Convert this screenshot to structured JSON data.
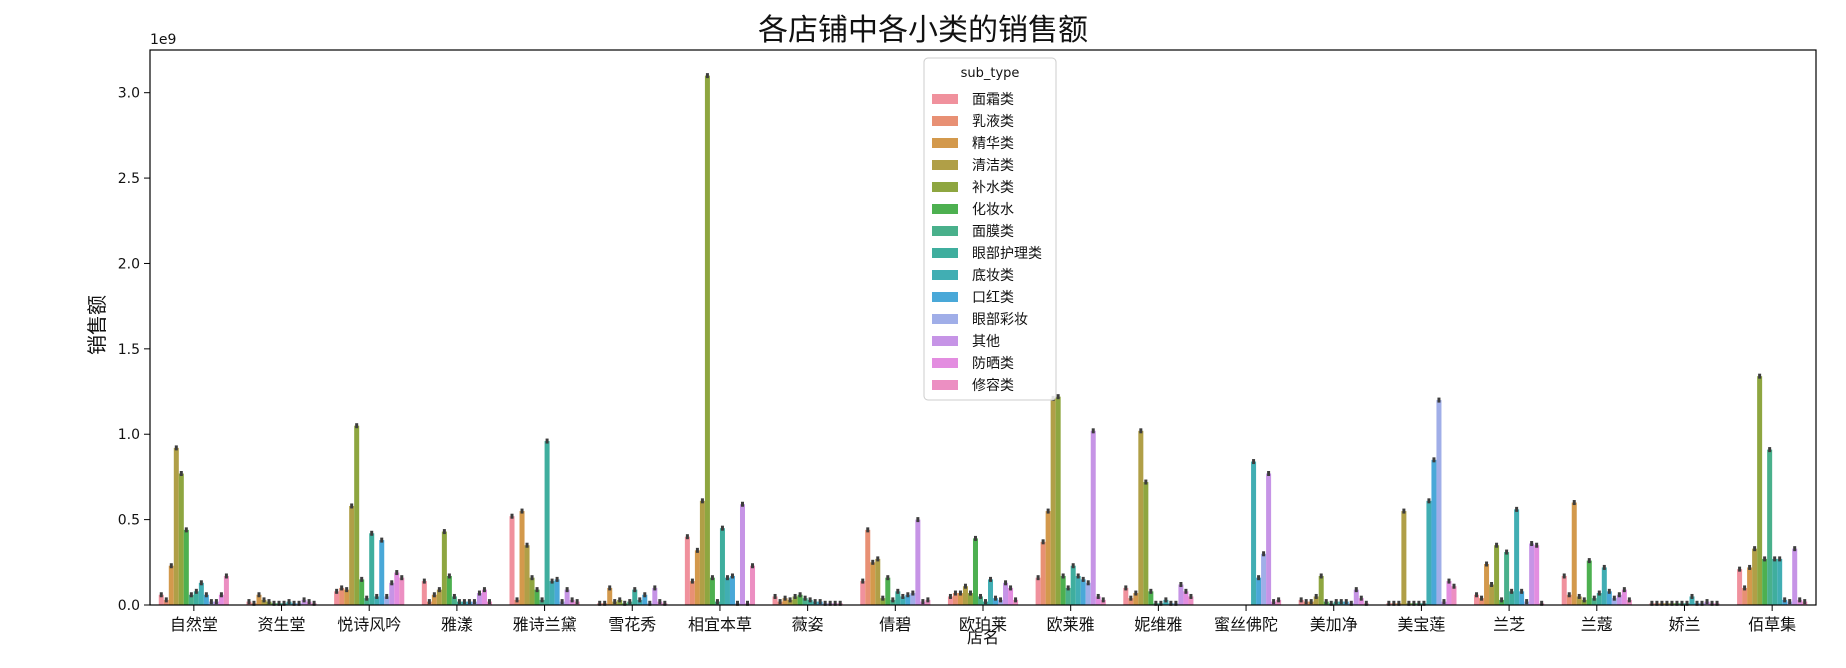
{
  "chart_data": {
    "type": "bar",
    "title": "各店铺中各小类的销售额",
    "xlabel": "店名",
    "ylabel": "销售额",
    "y_scale_label": "1e9",
    "y_multiplier": 1000000000,
    "ylim": [
      0,
      3.25
    ],
    "yticks": [
      "0.0",
      "0.5",
      "1.0",
      "1.5",
      "2.0",
      "2.5",
      "3.0"
    ],
    "legend_title": "sub_type",
    "legend_position": "upper center",
    "categories": [
      "自然堂",
      "资生堂",
      "悦诗风吟",
      "雅漾",
      "雅诗兰黛",
      "雪花秀",
      "相宜本草",
      "薇姿",
      "倩碧",
      "欧珀莱",
      "欧莱雅",
      "妮维雅",
      "蜜丝佛陀",
      "美加净",
      "美宝莲",
      "兰芝",
      "兰蔻",
      "娇兰",
      "佰草集"
    ],
    "series": [
      {
        "name": "面霜类",
        "color": "#f0919d",
        "values": [
          0.06,
          0.02,
          0.08,
          0.14,
          0.52,
          0.01,
          0.4,
          0.05,
          0.14,
          0.05,
          0.16,
          0.1,
          0,
          0.03,
          0.01,
          0.06,
          0.17,
          0.01,
          0.21
        ]
      },
      {
        "name": "乳液类",
        "color": "#e89074",
        "values": [
          0.03,
          0.01,
          0.1,
          0.02,
          0.03,
          0.01,
          0.14,
          0.02,
          0.44,
          0.07,
          0.37,
          0.04,
          0,
          0.02,
          0.01,
          0.04,
          0.06,
          0.01,
          0.1
        ]
      },
      {
        "name": "精华类",
        "color": "#d3994c",
        "values": [
          0.23,
          0.06,
          0.09,
          0.06,
          0.55,
          0.1,
          0.32,
          0.04,
          0.25,
          0.07,
          0.55,
          0.07,
          0,
          0.02,
          0.01,
          0.24,
          0.6,
          0.01,
          0.22
        ]
      },
      {
        "name": "清洁类",
        "color": "#b09f47",
        "values": [
          0.92,
          0.03,
          0.58,
          0.09,
          0.35,
          0.02,
          0.61,
          0.03,
          0.27,
          0.11,
          1.21,
          1.02,
          0,
          0.05,
          0.55,
          0.12,
          0.05,
          0.01,
          0.33
        ]
      },
      {
        "name": "补水类",
        "color": "#8ea640",
        "values": [
          0.77,
          0.02,
          1.05,
          0.43,
          0.16,
          0.03,
          3.1,
          0.05,
          0.04,
          0.07,
          1.22,
          0.72,
          0,
          0.17,
          0.01,
          0.35,
          0.03,
          0.01,
          1.34
        ]
      },
      {
        "name": "化妆水",
        "color": "#4db050",
        "values": [
          0.44,
          0.01,
          0.15,
          0.17,
          0.09,
          0.01,
          0.16,
          0.06,
          0.16,
          0.39,
          0.17,
          0.08,
          0,
          0.02,
          0.01,
          0.03,
          0.26,
          0.01,
          0.27
        ]
      },
      {
        "name": "面膜类",
        "color": "#49b08b",
        "values": [
          0.06,
          0.01,
          0.04,
          0.05,
          0.03,
          0.02,
          0.02,
          0.04,
          0.03,
          0.05,
          0.1,
          0.01,
          0,
          0.01,
          0.01,
          0.31,
          0.04,
          0.01,
          0.91
        ]
      },
      {
        "name": "眼部护理类",
        "color": "#3fae9e",
        "values": [
          0.08,
          0.01,
          0.42,
          0.02,
          0.96,
          0.09,
          0.45,
          0.03,
          0.08,
          0.02,
          0.23,
          0.01,
          0,
          0.02,
          0.01,
          0.08,
          0.07,
          0.01,
          0.27
        ]
      },
      {
        "name": "底妆类",
        "color": "#41aeb3",
        "values": [
          0.13,
          0.02,
          0.05,
          0.02,
          0.14,
          0.03,
          0.16,
          0.02,
          0.05,
          0.15,
          0.17,
          0.03,
          0.84,
          0.02,
          0.61,
          0.56,
          0.22,
          0.05,
          0.27
        ]
      },
      {
        "name": "口红类",
        "color": "#49a8d8",
        "values": [
          0.06,
          0.01,
          0.38,
          0.02,
          0.15,
          0.06,
          0.17,
          0.02,
          0.06,
          0.04,
          0.15,
          0.01,
          0.16,
          0.02,
          0.85,
          0.08,
          0.08,
          0.01,
          0.03
        ]
      },
      {
        "name": "眼部彩妆",
        "color": "#a0aee8",
        "values": [
          0.02,
          0.01,
          0.05,
          0.02,
          0.02,
          0.01,
          0.01,
          0.01,
          0.07,
          0.03,
          0.13,
          0.01,
          0.3,
          0.01,
          1.2,
          0.02,
          0.04,
          0.01,
          0.02
        ]
      },
      {
        "name": "其他",
        "color": "#c694e6",
        "values": [
          0.02,
          0.03,
          0.13,
          0.07,
          0.09,
          0.1,
          0.59,
          0.01,
          0.5,
          0.13,
          1.02,
          0.12,
          0.77,
          0.09,
          0.02,
          0.36,
          0.06,
          0.02,
          0.33
        ]
      },
      {
        "name": "防晒类",
        "color": "#e38de0",
        "values": [
          0.06,
          0.02,
          0.19,
          0.09,
          0.03,
          0.02,
          0.01,
          0.01,
          0.02,
          0.1,
          0.05,
          0.08,
          0.02,
          0.04,
          0.14,
          0.35,
          0.09,
          0.01,
          0.03
        ]
      },
      {
        "name": "修容类",
        "color": "#ec8fc2",
        "values": [
          0.17,
          0.01,
          0.16,
          0.02,
          0.02,
          0.01,
          0.23,
          0.01,
          0.03,
          0.03,
          0.03,
          0.05,
          0.03,
          0.01,
          0.11,
          0.01,
          0.03,
          0.01,
          0.02
        ]
      }
    ]
  }
}
